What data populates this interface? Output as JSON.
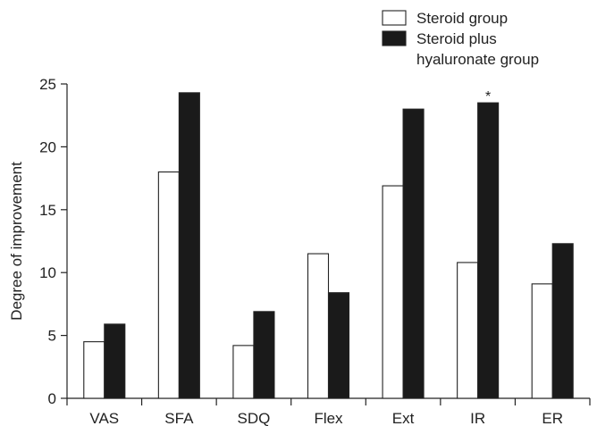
{
  "chart_data": {
    "type": "bar",
    "title": "",
    "xlabel": "",
    "ylabel": "Degree of improvement",
    "ylim": [
      0,
      25
    ],
    "yticks": [
      0,
      5,
      10,
      15,
      20,
      25
    ],
    "grid": false,
    "legend_position": "top-right",
    "categories": [
      "VAS",
      "SFA",
      "SDQ",
      "Flex",
      "Ext",
      "IR",
      "ER"
    ],
    "series": [
      {
        "name": "Steroid group",
        "color": "#ffffff",
        "values": [
          4.5,
          18.0,
          4.2,
          11.5,
          16.9,
          10.8,
          9.1
        ]
      },
      {
        "name": "Steroid plus hyaluronate group",
        "color": "#1a1a1a",
        "values": [
          5.9,
          24.3,
          6.9,
          8.4,
          23.0,
          23.5,
          12.3
        ]
      }
    ],
    "legend_lines": [
      [
        "Steroid group"
      ],
      [
        "Steroid plus",
        "hyaluronate group"
      ]
    ],
    "annotations": [
      {
        "category": "IR",
        "series": 1,
        "text": "*"
      }
    ]
  }
}
